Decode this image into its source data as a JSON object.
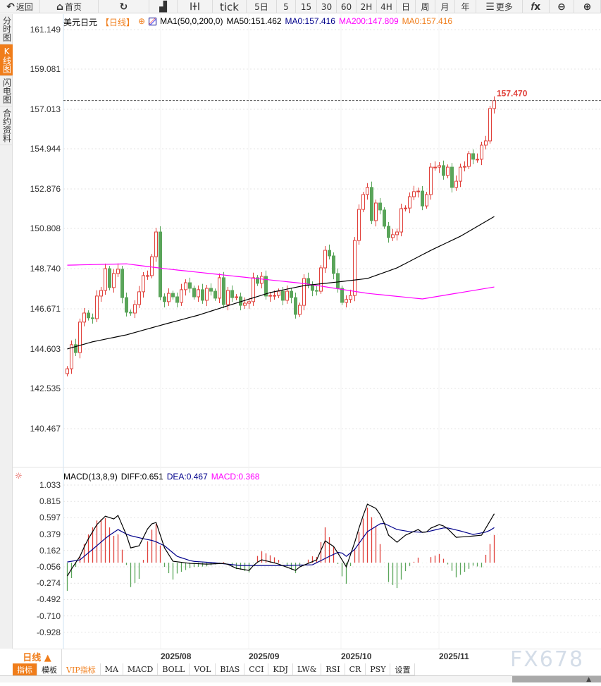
{
  "toolbar": [
    {
      "label": "返回",
      "icon": "back-arrow-icon"
    },
    {
      "label": "首页",
      "icon": "home-icon"
    },
    {
      "label": "",
      "icon": "refresh-icon"
    },
    {
      "label": "",
      "icon": "chart-bars-icon"
    },
    {
      "label": "",
      "icon": "candlestick-icon"
    },
    {
      "label": "tick"
    },
    {
      "label": "5日"
    },
    {
      "label": "5"
    },
    {
      "label": "15"
    },
    {
      "label": "30"
    },
    {
      "label": "60"
    },
    {
      "label": "2H"
    },
    {
      "label": "4H"
    },
    {
      "label": "日"
    },
    {
      "label": "周"
    },
    {
      "label": "月"
    },
    {
      "label": "年"
    },
    {
      "label": "更多",
      "icon": "menu-icon"
    },
    {
      "label": "fx",
      "icon": "function-icon"
    },
    {
      "label": "",
      "icon": "zoom-out-icon"
    },
    {
      "label": "",
      "icon": "zoom-in-icon"
    }
  ],
  "sidebar": [
    {
      "label": "分时图"
    },
    {
      "label": "K线图",
      "active": true
    },
    {
      "label": "闪电图"
    },
    {
      "label": "合约资料"
    }
  ],
  "legend": {
    "symbol": "美元日元",
    "period": "【日线】",
    "indicator": "MA1(50,0,200,0)",
    "ma50": "MA50:151.462",
    "ma0a": "MA0:157.416",
    "ma200": "MA200:147.809",
    "ma0b": "MA0:157.416"
  },
  "colors": {
    "up": "#e0403a",
    "down": "#5aa55a",
    "ma50": "#000000",
    "ma200": "#ff00ff",
    "accent": "#f07d1a",
    "dea": "#00008b"
  },
  "price_axis": [
    "161.149",
    "159.081",
    "157.013",
    "154.944",
    "152.876",
    "150.808",
    "148.740",
    "146.671",
    "144.603",
    "142.535",
    "140.467"
  ],
  "last_price": "157.470",
  "macd": {
    "label": "MACD(13,8,9)",
    "diff": "DIFF:0.651",
    "dea": "DEA:0.467",
    "macd": "MACD:0.368",
    "axis": [
      "1.033",
      "0.815",
      "0.597",
      "0.379",
      "0.162",
      "-0.056",
      "-0.274",
      "-0.492",
      "-0.710",
      "-0.928"
    ]
  },
  "x_axis": {
    "period": "日线 ▲",
    "dates": [
      "2025/08",
      "2025/09",
      "2025/10",
      "2025/11"
    ]
  },
  "tabs": [
    {
      "label": "指标",
      "active": true
    },
    {
      "label": "模板"
    },
    {
      "label": "VIP指标",
      "vip": true
    },
    {
      "label": "MA"
    },
    {
      "label": "MACD"
    },
    {
      "label": "BOLL"
    },
    {
      "label": "VOL"
    },
    {
      "label": "BIAS"
    },
    {
      "label": "CCI"
    },
    {
      "label": "KDJ"
    },
    {
      "label": "LW&"
    },
    {
      "label": "RSI"
    },
    {
      "label": "CR"
    },
    {
      "label": "PSY"
    },
    {
      "label": "设置"
    }
  ],
  "watermark": "FX678",
  "chart_data": {
    "type": "candlestick",
    "ylim": [
      140.467,
      161.149
    ],
    "first_open": 143.32,
    "closes": [
      143.57,
      144.82,
      144.41,
      145.99,
      146.46,
      146.21,
      146.17,
      147.34,
      147.63,
      148.76,
      147.78,
      148.51,
      148.73,
      147.26,
      146.5,
      146.46,
      146.9,
      147.56,
      148.4,
      148.4,
      149.38,
      150.66,
      147.3,
      147.05,
      147.48,
      147.3,
      147.01,
      147.67,
      148.03,
      147.74,
      147.3,
      147.67,
      147.12,
      147.74,
      147.59,
      147.23,
      148.29,
      146.9,
      147.63,
      147.26,
      147.3,
      146.86,
      146.97,
      147.05,
      148.29,
      148.0,
      148.36,
      147.34,
      147.37,
      147.37,
      147.59,
      147.12,
      147.59,
      147.26,
      146.39,
      146.86,
      148.25,
      147.92,
      147.63,
      147.59,
      148.8,
      149.71,
      149.42,
      148.51,
      147.74,
      147.01,
      147.16,
      147.37,
      150.22,
      151.83,
      152.6,
      152.97,
      151.25,
      152.16,
      151.8,
      150.96,
      150.37,
      150.52,
      150.66,
      151.87,
      151.9,
      152.49,
      152.75,
      152.78,
      152.01,
      152.6,
      154.02,
      154.02,
      154.1,
      153.59,
      154.02,
      152.97,
      153.29,
      154.02,
      154.06,
      154.72,
      154.43,
      154.43,
      155.16,
      155.38,
      157.06,
      157.47
    ],
    "ma50": [
      [
        0,
        144.6
      ],
      [
        6,
        144.97
      ],
      [
        14,
        145.33
      ],
      [
        23,
        145.88
      ],
      [
        31,
        146.35
      ],
      [
        40,
        146.98
      ],
      [
        48,
        147.52
      ],
      [
        56,
        147.88
      ],
      [
        64,
        148.07
      ],
      [
        71,
        148.25
      ],
      [
        78,
        148.8
      ],
      [
        86,
        149.71
      ],
      [
        93,
        150.44
      ],
      [
        101,
        151.46
      ]
    ],
    "ma200": [
      [
        0,
        148.94
      ],
      [
        14,
        149.01
      ],
      [
        23,
        148.76
      ],
      [
        43,
        148.29
      ],
      [
        56,
        147.99
      ],
      [
        71,
        147.48
      ],
      [
        84,
        147.19
      ],
      [
        101,
        147.81
      ]
    ],
    "macd_ylim": [
      -0.928,
      1.033
    ],
    "diff": [
      [
        0,
        -0.178
      ],
      [
        1,
        -0.084
      ],
      [
        3,
        0.084
      ],
      [
        4.5,
        0.272
      ],
      [
        7,
        0.507
      ],
      [
        9,
        0.619
      ],
      [
        11,
        0.582
      ],
      [
        12,
        0.629
      ],
      [
        14,
        0.366
      ],
      [
        15,
        0.197
      ],
      [
        17,
        0.225
      ],
      [
        19.5,
        0.507
      ],
      [
        21,
        0.535
      ],
      [
        23,
        0.197
      ],
      [
        25,
        0.019
      ],
      [
        29,
        -0.009
      ],
      [
        33,
        -0.019
      ],
      [
        37.5,
        -0.009
      ],
      [
        40,
        -0.075
      ],
      [
        43,
        -0.103
      ],
      [
        44.5,
        -0.009
      ],
      [
        46,
        0.038
      ],
      [
        49.5,
        -0.009
      ],
      [
        54,
        -0.103
      ],
      [
        55,
        -0.056
      ],
      [
        59,
        0.038
      ],
      [
        61,
        0.291
      ],
      [
        63,
        0.216
      ],
      [
        64.5,
        0.084
      ],
      [
        66,
        -0.056
      ],
      [
        68,
        0.272
      ],
      [
        69.5,
        0.554
      ],
      [
        71,
        0.779
      ],
      [
        73,
        0.722
      ],
      [
        74.5,
        0.601
      ],
      [
        76,
        0.366
      ],
      [
        78,
        0.272
      ],
      [
        80,
        0.366
      ],
      [
        83,
        0.441
      ],
      [
        84.5,
        0.385
      ],
      [
        86,
        0.46
      ],
      [
        88,
        0.507
      ],
      [
        89.5,
        0.479
      ],
      [
        92,
        0.338
      ],
      [
        94.5,
        0.347
      ],
      [
        98,
        0.366
      ],
      [
        99.5,
        0.507
      ],
      [
        101,
        0.651
      ]
    ],
    "dea": [
      [
        0,
        0.009
      ],
      [
        3,
        0.038
      ],
      [
        6,
        0.178
      ],
      [
        9.5,
        0.347
      ],
      [
        12,
        0.441
      ],
      [
        14.5,
        0.366
      ],
      [
        18,
        0.319
      ],
      [
        20.5,
        0.291
      ],
      [
        23,
        0.225
      ],
      [
        26,
        0.084
      ],
      [
        29.5,
        0.019
      ],
      [
        34.5,
        0
      ],
      [
        41,
        -0.038
      ],
      [
        51,
        -0.038
      ],
      [
        58,
        -0.028
      ],
      [
        62,
        0.084
      ],
      [
        64.5,
        0.15
      ],
      [
        66,
        0.084
      ],
      [
        68,
        0.178
      ],
      [
        71,
        0.413
      ],
      [
        74.5,
        0.535
      ],
      [
        78,
        0.441
      ],
      [
        81,
        0.413
      ],
      [
        84.5,
        0.403
      ],
      [
        89.5,
        0.469
      ],
      [
        93,
        0.422
      ],
      [
        96,
        0.375
      ],
      [
        99.5,
        0.413
      ],
      [
        101,
        0.467
      ]
    ]
  }
}
